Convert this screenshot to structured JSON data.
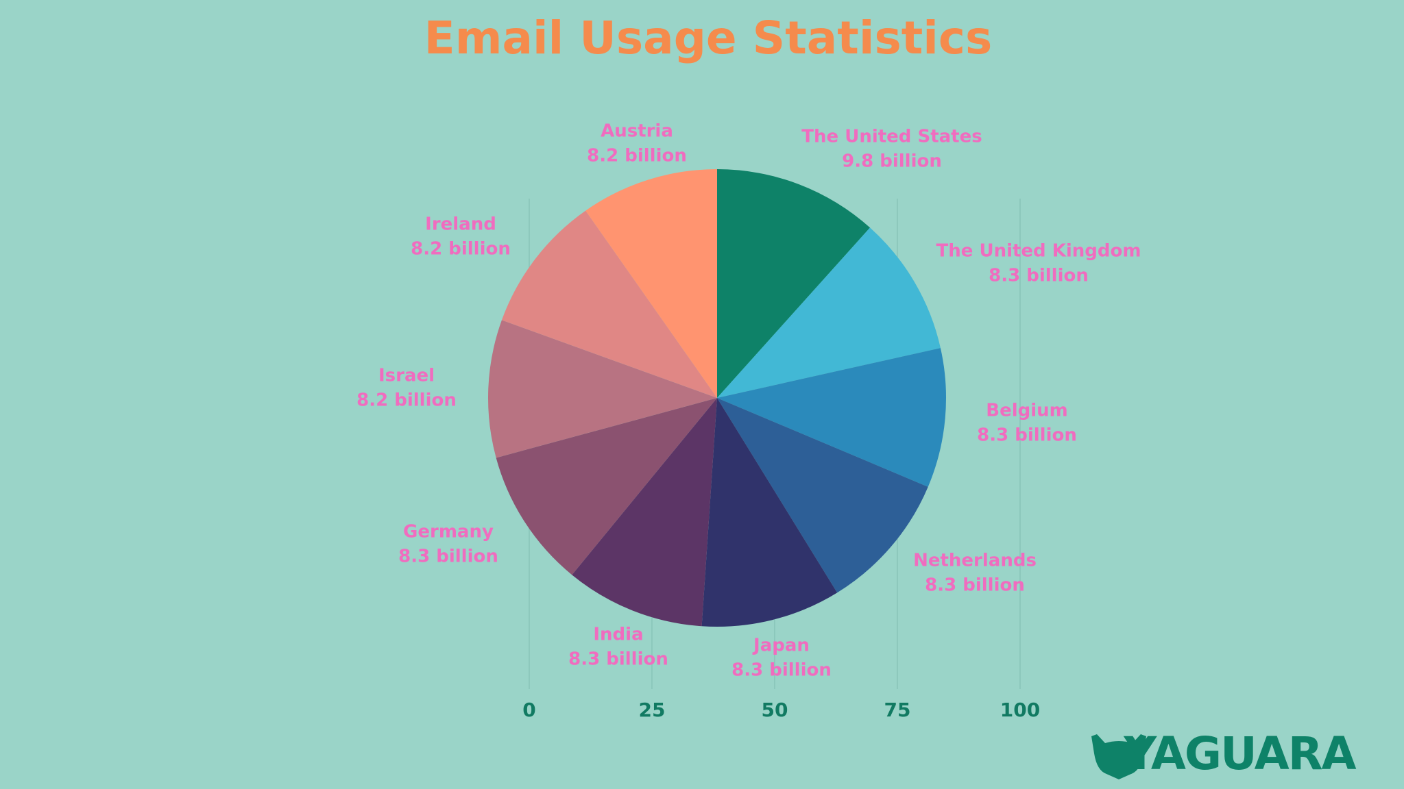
{
  "chart_data": {
    "type": "pie",
    "title": "Email Usage Statistics",
    "categories": [
      "The United States",
      "The United Kingdom",
      "Belgium",
      "Netherlands",
      "Japan",
      "India",
      "Germany",
      "Israel",
      "Ireland",
      "Austria"
    ],
    "values": [
      9.8,
      8.3,
      8.3,
      8.3,
      8.3,
      8.3,
      8.3,
      8.2,
      8.2,
      8.2
    ],
    "value_labels": [
      "9.8 billion",
      "8.3 billion",
      "8.3 billion",
      "8.3 billion",
      "8.3 billion",
      "8.3 billion",
      "8.3 billion",
      "8.2 billion",
      "8.2 billion",
      "8.2 billion"
    ],
    "colors": [
      "#0e8268",
      "#42b8d5",
      "#2b8abb",
      "#2d5f97",
      "#30336b",
      "#5c3566",
      "#8b5270",
      "#b87382",
      "#e08785",
      "#ff9470"
    ],
    "xlim": [
      0,
      100
    ],
    "xticks": [
      0,
      25,
      50,
      75,
      100
    ],
    "grid": true
  },
  "logo": {
    "text": "YAGUARA"
  }
}
